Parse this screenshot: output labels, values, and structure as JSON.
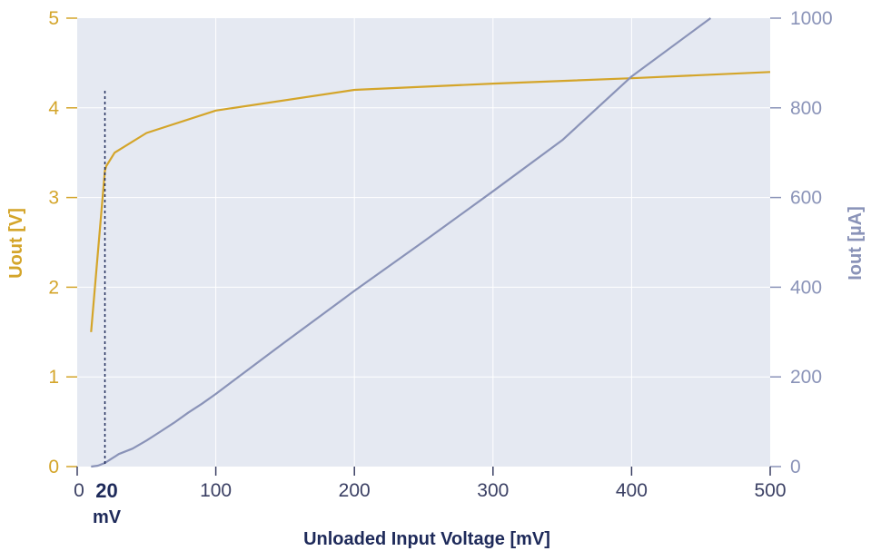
{
  "chart_data": {
    "type": "line",
    "title": "",
    "xlabel": "Unloaded Input Voltage [mV]",
    "ylabel": "Uout [V]",
    "y2label": "Iout [µA]",
    "xlim": [
      0,
      500
    ],
    "ylim": [
      0,
      5
    ],
    "y2lim": [
      0,
      1000
    ],
    "x_ticks": [
      0,
      100,
      200,
      300,
      400,
      500
    ],
    "y_ticks": [
      0,
      1,
      2,
      3,
      4,
      5
    ],
    "y2_ticks": [
      0,
      200,
      400,
      600,
      800,
      1000
    ],
    "grid": true,
    "series": [
      {
        "axis": "left",
        "color": "#d4a52a",
        "x": [
          10,
          20,
          21,
          27,
          50,
          100,
          200,
          300,
          400,
          500
        ],
        "y": [
          1.5,
          3.3,
          3.35,
          3.5,
          3.72,
          3.97,
          4.2,
          4.27,
          4.33,
          4.4
        ]
      },
      {
        "axis": "right",
        "color": "#8a93b8",
        "x": [
          10,
          15,
          20,
          25,
          30,
          40,
          50,
          60,
          70,
          80,
          90,
          100,
          150,
          200,
          250,
          300,
          350,
          400,
          450,
          457
        ],
        "y": [
          0,
          2,
          8,
          18,
          28,
          40,
          58,
          78,
          98,
          120,
          140,
          162,
          278,
          392,
          502,
          614,
          728,
          870,
          984,
          1000
        ]
      }
    ],
    "annotations": [
      {
        "type": "vline",
        "x": 20,
        "style": "dotted",
        "label_value": "20",
        "label_unit": "mV"
      }
    ]
  },
  "colors": {
    "left_axis": "#d4a52a",
    "right_axis": "#8a93b8",
    "x_axis_text": "#3a3f63",
    "axis_title_dark": "#1e2a5a",
    "plot_background": "#e5e9f2",
    "grid": "#ffffff"
  }
}
